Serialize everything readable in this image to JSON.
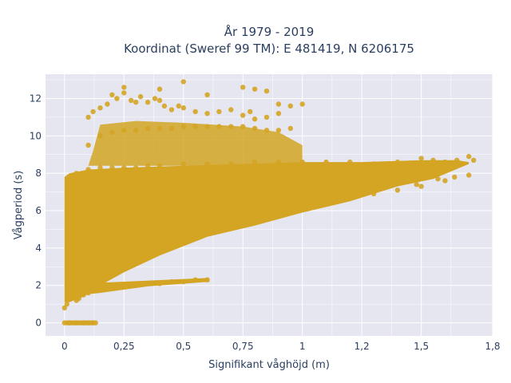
{
  "chart_data": {
    "type": "scatter",
    "title_line1": "År 1979 - 2019",
    "title_line2": "Koordinat (Sweref 99 TM): E 481419, N 6206175",
    "xlabel": "Signifikant våghöjd (m)",
    "ylabel": "Vågperiod (s)",
    "xlim": [
      -0.08,
      1.8
    ],
    "ylim": [
      -0.7,
      13.3
    ],
    "x_ticks": [
      0,
      0.25,
      0.5,
      0.75,
      1,
      1.25,
      1.5,
      1.8
    ],
    "x_tick_labels": [
      "0",
      "0,25",
      "0,5",
      "0,75",
      "1",
      "1,2",
      "1,5",
      "1,8"
    ],
    "y_ticks": [
      0,
      2,
      4,
      6,
      8,
      10,
      12
    ],
    "y_tick_labels": [
      "0",
      "2",
      "4",
      "6",
      "8",
      "10",
      "12"
    ],
    "grid": true,
    "marker_color": "#d4a423",
    "plot_bg": "#e5e6f0",
    "series": [
      {
        "x": [
          0.0,
          0.02,
          0.05,
          0.08,
          0.1,
          0.12,
          0.13,
          0.02,
          0.03,
          0.05,
          0.06,
          0.08,
          0.1,
          0.12,
          0.15,
          0.2,
          0.25,
          0.3,
          0.35,
          0.4,
          0.45,
          0.5,
          0.55,
          0.6,
          0.02,
          0.05,
          0.08,
          0.1,
          0.15,
          0.2,
          0.25,
          0.3,
          0.4,
          0.5,
          0.6,
          0.7,
          0.8,
          0.9,
          1.0,
          1.1,
          1.2,
          1.3,
          1.4,
          1.5,
          1.6,
          1.7,
          0.05,
          0.1,
          0.15,
          0.2,
          0.25,
          0.3,
          0.35,
          0.4,
          0.5,
          0.6,
          0.7,
          0.8,
          0.9,
          1.0,
          1.1,
          1.2,
          1.3,
          1.4,
          1.5,
          1.55,
          1.6,
          1.65,
          1.7,
          1.72,
          0.02,
          0.05,
          0.1,
          0.15,
          0.2,
          0.25,
          0.3,
          0.35,
          0.4,
          0.45,
          0.5,
          0.55,
          0.6,
          0.65,
          0.7,
          0.75,
          0.8,
          0.85,
          0.9,
          0.95,
          1.0,
          1.05,
          0.1,
          0.15,
          0.2,
          0.25,
          0.3,
          0.35,
          0.4,
          0.45,
          0.5,
          0.55,
          0.6,
          0.65,
          0.7,
          0.75,
          0.8,
          0.85,
          0.9,
          0.95,
          0.1,
          0.12,
          0.15,
          0.18,
          0.2,
          0.22,
          0.25,
          0.28,
          0.3,
          0.32,
          0.35,
          0.38,
          0.4,
          0.42,
          0.45,
          0.48,
          0.5,
          0.55,
          0.6,
          0.65,
          0.7,
          0.75,
          0.78,
          0.8,
          0.85,
          0.9,
          0.95,
          1.0,
          0.25,
          0.4,
          0.5,
          0.6,
          0.75,
          0.8,
          0.85,
          0.9,
          0.03,
          0.08,
          0.12,
          0.18,
          0.22,
          0.3,
          0.38,
          0.45,
          0.52,
          0.58,
          0.66,
          0.72,
          0.82,
          0.88,
          0.95,
          1.02,
          1.1,
          1.18,
          1.25,
          1.33,
          1.42,
          1.48,
          1.57,
          1.64,
          0.0,
          0.01,
          0.03,
          0.05,
          0.07,
          0.09,
          0.11
        ],
        "y": [
          0,
          0,
          0,
          0,
          0,
          0,
          0,
          1.4,
          1.6,
          1.8,
          1.3,
          1.5,
          1.6,
          1.7,
          1.8,
          1.9,
          2.0,
          2.0,
          2.1,
          2.1,
          2.2,
          2.2,
          2.3,
          2.3,
          2.2,
          3.0,
          3.5,
          4.0,
          4.2,
          4.5,
          4.7,
          4.9,
          5.2,
          5.4,
          5.6,
          5.8,
          6.0,
          6.2,
          6.4,
          6.5,
          6.7,
          6.9,
          7.1,
          7.3,
          7.6,
          7.9,
          8.0,
          8.2,
          8.3,
          8.3,
          8.3,
          8.3,
          8.4,
          8.4,
          8.5,
          8.5,
          8.5,
          8.6,
          8.6,
          8.6,
          8.6,
          8.6,
          8.5,
          8.6,
          8.8,
          8.7,
          8.6,
          8.7,
          8.9,
          8.7,
          5.0,
          6.0,
          7.0,
          7.2,
          7.3,
          7.3,
          7.4,
          7.4,
          7.4,
          7.5,
          7.5,
          7.5,
          7.6,
          7.6,
          7.6,
          7.7,
          7.7,
          7.7,
          7.8,
          7.8,
          7.8,
          7.9,
          9.5,
          10.0,
          10.2,
          10.3,
          10.3,
          10.4,
          10.4,
          10.4,
          10.5,
          10.5,
          10.5,
          10.5,
          10.5,
          10.5,
          10.4,
          10.3,
          10.3,
          10.4,
          11.0,
          11.3,
          11.5,
          11.7,
          12.2,
          12.0,
          12.3,
          11.9,
          11.8,
          12.1,
          11.8,
          12.0,
          11.9,
          11.6,
          11.4,
          11.6,
          11.5,
          11.3,
          11.2,
          11.3,
          11.4,
          11.1,
          11.3,
          10.9,
          11.0,
          11.2,
          11.6,
          11.7,
          12.6,
          12.5,
          12.9,
          12.2,
          12.6,
          12.5,
          12.4,
          11.7,
          3.5,
          4.5,
          5.5,
          6.0,
          6.5,
          6.8,
          7.0,
          6.2,
          6.6,
          7.2,
          6.4,
          6.9,
          7.1,
          6.8,
          7.3,
          7.0,
          7.4,
          7.2,
          7.5,
          7.3,
          7.6,
          7.4,
          7.7,
          7.8,
          0.8,
          1.0,
          1.5,
          1.2,
          1.8,
          2.5,
          2.8
        ]
      }
    ]
  }
}
